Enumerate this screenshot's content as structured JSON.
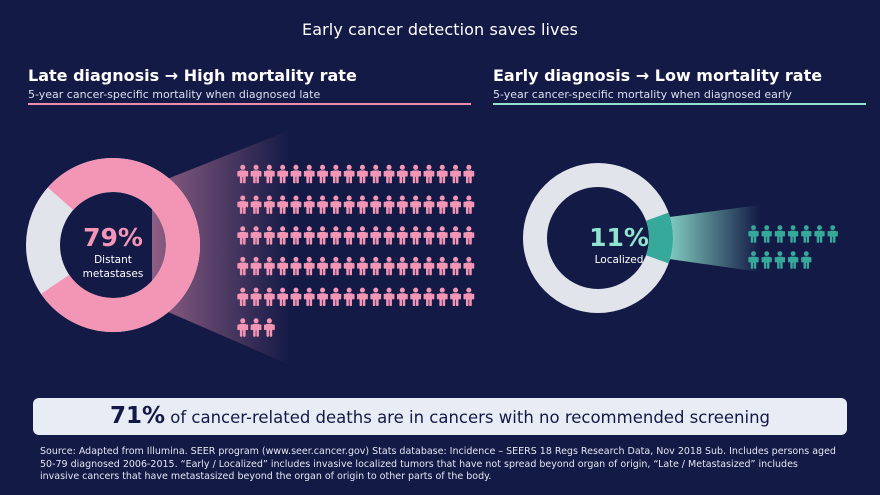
{
  "title": "Early cancer detection saves lives",
  "left": {
    "heading": "Late diagnosis → High mortality rate",
    "subheading": "5-year cancer-specific mortality when diagnosed late",
    "percent": "79%",
    "value": 79,
    "label_line1": "Distant",
    "label_line2": "metastases",
    "icon_count": 93,
    "color": "#f396b6",
    "track_color": "#e2e4ec"
  },
  "right": {
    "heading": "Early diagnosis → Low mortality rate",
    "subheading": "5-year cancer-specific mortality when diagnosed early",
    "percent": "11%",
    "value": 11,
    "label": "Localized",
    "icon_count": 12,
    "color": "#36a99a",
    "track_color": "#e2e4ec"
  },
  "icon": "person-icon",
  "banner": {
    "percent": "71%",
    "text": " of cancer-related deaths are in cancers with no recommended screening"
  },
  "source": "Source: Adapted from Illumina. SEER program (www.seer.cancer.gov) Stats database: Incidence – SEERS 18 Regs Research Data, Nov 2018 Sub. Includes persons aged 50-79 diagnosed 2006-2015. “Early / Localized” includes invasive localized tumors that have not spread beyond organ of origin, “Late / Metastasized” includes invasive cancers that have metastasized beyond the organ of origin to other parts of the body."
}
